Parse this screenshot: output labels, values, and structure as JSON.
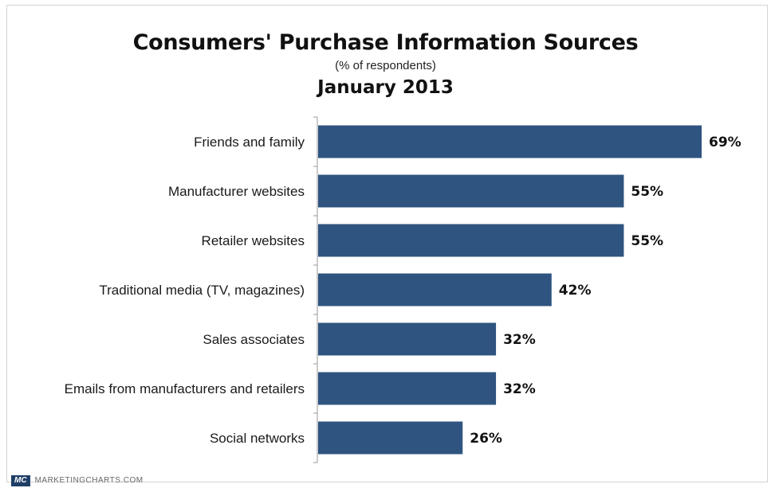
{
  "chart_data": {
    "type": "bar",
    "orientation": "horizontal",
    "title": "Consumers' Purchase Information Sources",
    "subtitle": "(% of respondents)",
    "date_label": "January 2013",
    "categories": [
      "Friends and family",
      "Manufacturer websites",
      "Retailer websites",
      "Traditional media (TV, magazines)",
      "Sales associates",
      "Emails from manufacturers and retailers",
      "Social networks"
    ],
    "values": [
      69,
      55,
      55,
      42,
      32,
      32,
      26
    ],
    "value_labels": [
      "69%",
      "55%",
      "55%",
      "42%",
      "32%",
      "32%",
      "26%"
    ],
    "xlim": [
      0,
      100
    ],
    "grid": false,
    "bar_color": "#2f5480"
  },
  "footer": {
    "logo": "MC",
    "source": "MARKETINGCHARTS.COM"
  }
}
